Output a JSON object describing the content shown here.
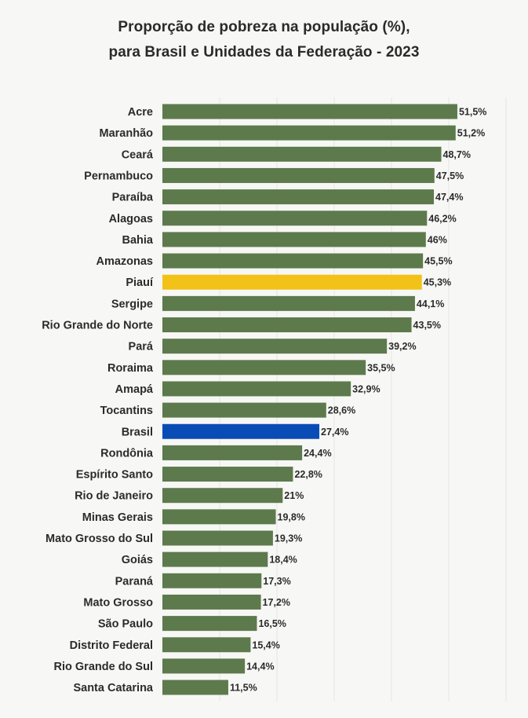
{
  "chart_data": {
    "type": "bar",
    "orientation": "horizontal",
    "title": "Proporção de pobreza na população (%),",
    "subtitle": "para Brasil e Unidades da Federação - 2023",
    "categories": [
      "Acre",
      "Maranhão",
      "Ceará",
      "Pernambuco",
      "Paraíba",
      "Alagoas",
      "Bahia",
      "Amazonas",
      "Piauí",
      "Sergipe",
      "Rio Grande do Norte",
      "Pará",
      "Roraima",
      "Amapá",
      "Tocantins",
      "Brasil",
      "Rondônia",
      "Espírito Santo",
      "Rio de Janeiro",
      "Minas Gerais",
      "Mato Grosso do Sul",
      "Goiás",
      "Paraná",
      "Mato Grosso",
      "São Paulo",
      "Distrito Federal",
      "Rio Grande do Sul",
      "Santa Catarina"
    ],
    "values": [
      51.5,
      51.2,
      48.7,
      47.5,
      47.4,
      46.2,
      46,
      45.5,
      45.3,
      44.1,
      43.5,
      39.2,
      35.5,
      32.9,
      28.6,
      27.4,
      24.4,
      22.8,
      21,
      19.8,
      19.3,
      18.4,
      17.3,
      17.2,
      16.5,
      15.4,
      14.4,
      11.5
    ],
    "value_labels": [
      "51,5%",
      "51,2%",
      "48,7%",
      "47,5%",
      "47,4%",
      "46,2%",
      "46%",
      "45,5%",
      "45,3%",
      "44,1%",
      "43,5%",
      "39,2%",
      "35,5%",
      "32,9%",
      "28,6%",
      "27,4%",
      "24,4%",
      "22,8%",
      "21%",
      "19,8%",
      "19,3%",
      "18,4%",
      "17,3%",
      "17,2%",
      "16,5%",
      "15,4%",
      "14,4%",
      "11,5%"
    ],
    "colors": {
      "default": "#5d7a4c",
      "highlight": {
        "Piauí": "#f2c218",
        "Brasil": "#0a4cb5"
      }
    },
    "xlim": [
      0,
      60
    ],
    "grid": true,
    "legend": "none"
  }
}
